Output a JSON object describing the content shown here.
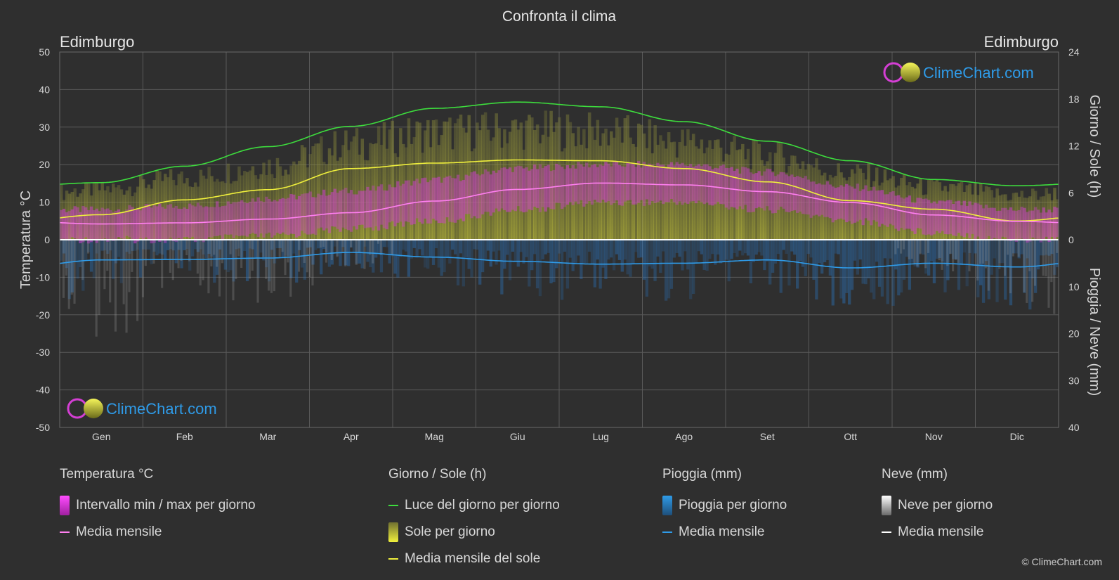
{
  "title": "Confronta il clima",
  "location_left": "Edimburgo",
  "location_right": "Edimburgo",
  "watermark": "ClimeChart.com",
  "copyright": "© ClimeChart.com",
  "colors": {
    "background": "#2f2f2f",
    "temp_range": "#d23ed2",
    "temp_mean": "#ff7ff0",
    "daylight": "#3ddc3d",
    "sun_fill": "#b8b83a",
    "sun_mean": "#f0f03c",
    "rain": "#2a77c4",
    "rain_mean": "#2f9be8",
    "snow": "#bbbbbb",
    "snow_mean": "#ffffff",
    "grid": "#5a5a5a",
    "text": "#d8d8d8"
  },
  "chart_data": {
    "type": "area",
    "months": [
      "Gen",
      "Feb",
      "Mar",
      "Apr",
      "Mag",
      "Giu",
      "Lug",
      "Ago",
      "Set",
      "Ott",
      "Nov",
      "Dic"
    ],
    "axes": {
      "left": {
        "label": "Temperatura °C",
        "min": -50,
        "max": 50,
        "ticks": [
          50,
          40,
          30,
          20,
          10,
          0,
          -10,
          -20,
          -30,
          -40,
          -50
        ]
      },
      "right_top": {
        "label": "Giorno / Sole (h)",
        "min": 0,
        "max": 24,
        "ticks": [
          24,
          18,
          12,
          6,
          0
        ]
      },
      "right_bottom": {
        "label": "Pioggia / Neve (mm)",
        "min": 0,
        "max": 40,
        "ticks": [
          10,
          20,
          30,
          40
        ]
      }
    },
    "grid": true,
    "series": [
      {
        "name": "Luce del giorno per giorno",
        "unit": "h",
        "values": [
          7.3,
          9.4,
          11.9,
          14.5,
          16.8,
          17.6,
          17.0,
          15.1,
          12.6,
          10.1,
          7.7,
          6.9
        ]
      },
      {
        "name": "Sole per giorno",
        "unit": "h",
        "values": [
          7.0,
          8.5,
          10.3,
          13.2,
          14.8,
          15.2,
          14.9,
          13.5,
          11.6,
          9.1,
          7.2,
          6.1
        ]
      },
      {
        "name": "Media mensile del sole",
        "unit": "h",
        "values": [
          3.2,
          5.1,
          6.4,
          9.1,
          9.8,
          10.2,
          10.1,
          9.1,
          7.4,
          5.0,
          3.9,
          2.4
        ]
      },
      {
        "name": "Intervallo min / max per giorno",
        "unit": "°C",
        "min": [
          1,
          1,
          2,
          4,
          6,
          9,
          11,
          11,
          9,
          6,
          3,
          1
        ],
        "max": [
          7,
          8,
          10,
          12,
          15,
          18,
          19,
          19,
          17,
          13,
          9,
          7
        ]
      },
      {
        "name": "Media mensile",
        "unit": "°C",
        "values": [
          4.2,
          4.5,
          5.5,
          7.2,
          10.3,
          13.4,
          15.1,
          14.6,
          12.8,
          9.9,
          6.6,
          4.9
        ]
      },
      {
        "name": "Pioggia per giorno",
        "unit": "mm",
        "values": [
          4.3,
          3.9,
          3.6,
          2.8,
          3.6,
          4.6,
          5.0,
          4.9,
          4.2,
          5.8,
          5.0,
          5.8
        ]
      },
      {
        "name": "Media mensile (pioggia)",
        "unit": "mm",
        "values": [
          4.3,
          4.2,
          3.9,
          2.7,
          3.7,
          4.6,
          5.2,
          5.0,
          4.3,
          6.0,
          5.0,
          5.8
        ]
      },
      {
        "name": "Neve per giorno",
        "unit": "mm",
        "values": [
          0.3,
          0.3,
          0.2,
          0.1,
          0,
          0,
          0,
          0,
          0,
          0,
          0.1,
          0.2
        ]
      },
      {
        "name": "Media mensile (neve)",
        "unit": "mm",
        "values": [
          0.3,
          0.3,
          0.2,
          0.1,
          0,
          0,
          0,
          0,
          0,
          0,
          0.1,
          0.2
        ]
      }
    ]
  },
  "legend": {
    "temperature": {
      "title": "Temperatura °C",
      "items": [
        "Intervallo min / max per giorno",
        "Media mensile"
      ]
    },
    "sun": {
      "title": "Giorno / Sole (h)",
      "items": [
        "Luce del giorno per giorno",
        "Sole per giorno",
        "Media mensile del sole"
      ]
    },
    "rain": {
      "title": "Pioggia (mm)",
      "items": [
        "Pioggia per giorno",
        "Media mensile"
      ]
    },
    "snow": {
      "title": "Neve (mm)",
      "items": [
        "Neve per giorno",
        "Media mensile"
      ]
    }
  }
}
